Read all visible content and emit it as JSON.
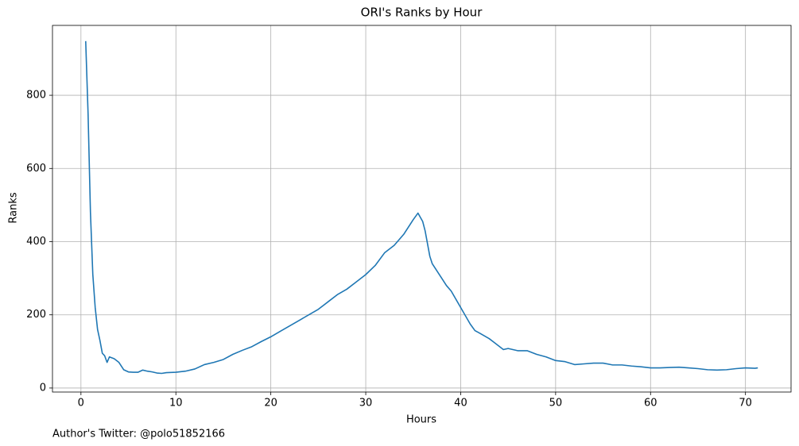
{
  "chart_data": {
    "type": "line",
    "title": "ORI's Ranks by Hour",
    "x_label": "Hours",
    "y_label": "Ranks",
    "annotation": "Author's Twitter: @polo51852166",
    "grid": true,
    "xlim": [
      -3.0,
      74.8
    ],
    "ylim": [
      -11,
      991
    ],
    "xticks": [
      0,
      10,
      20,
      30,
      40,
      50,
      60,
      70
    ],
    "yticks": [
      0,
      200,
      400,
      600,
      800
    ],
    "x": [
      0.5,
      0.75,
      1.0,
      1.25,
      1.5,
      1.75,
      2.0,
      2.25,
      2.5,
      2.75,
      3.0,
      3.5,
      4.0,
      4.5,
      5,
      5.5,
      6,
      6.5,
      7,
      7.5,
      8,
      8.5,
      9,
      10,
      11,
      12,
      13,
      14,
      15,
      16,
      17,
      18,
      19,
      20,
      21,
      22,
      23,
      24,
      25,
      26,
      27,
      28,
      29,
      30,
      31,
      32,
      33,
      34,
      35,
      35.5,
      36,
      36.25,
      36.75,
      37,
      38,
      38.5,
      39,
      40,
      41,
      41.5,
      42,
      43,
      43.5,
      44,
      44.5,
      45,
      46,
      47,
      48,
      49,
      50,
      51,
      52,
      53,
      54,
      55,
      56,
      57,
      58,
      59,
      60,
      61,
      62,
      63,
      64,
      65,
      66,
      67,
      68,
      69,
      70,
      71,
      71.3
    ],
    "series": [
      {
        "name": "ORI",
        "color": "#1f77b4",
        "values": [
          948,
          750,
          480,
          310,
          220,
          160,
          130,
          95,
          88,
          70,
          85,
          80,
          70,
          50,
          44,
          43,
          43,
          49,
          46,
          44,
          41,
          40,
          42,
          43,
          46,
          52,
          64,
          70,
          78,
          92,
          103,
          113,
          127,
          140,
          155,
          170,
          185,
          200,
          215,
          235,
          255,
          270,
          290,
          310,
          335,
          370,
          390,
          420,
          460,
          478,
          455,
          430,
          360,
          340,
          300,
          280,
          265,
          220,
          175,
          157,
          150,
          135,
          125,
          115,
          105,
          108,
          102,
          102,
          92,
          85,
          75,
          72,
          64,
          66,
          68,
          68,
          63,
          63,
          60,
          58,
          55,
          55,
          56,
          57,
          55,
          53,
          50,
          49,
          50,
          53,
          55,
          54,
          55
        ]
      }
    ]
  }
}
